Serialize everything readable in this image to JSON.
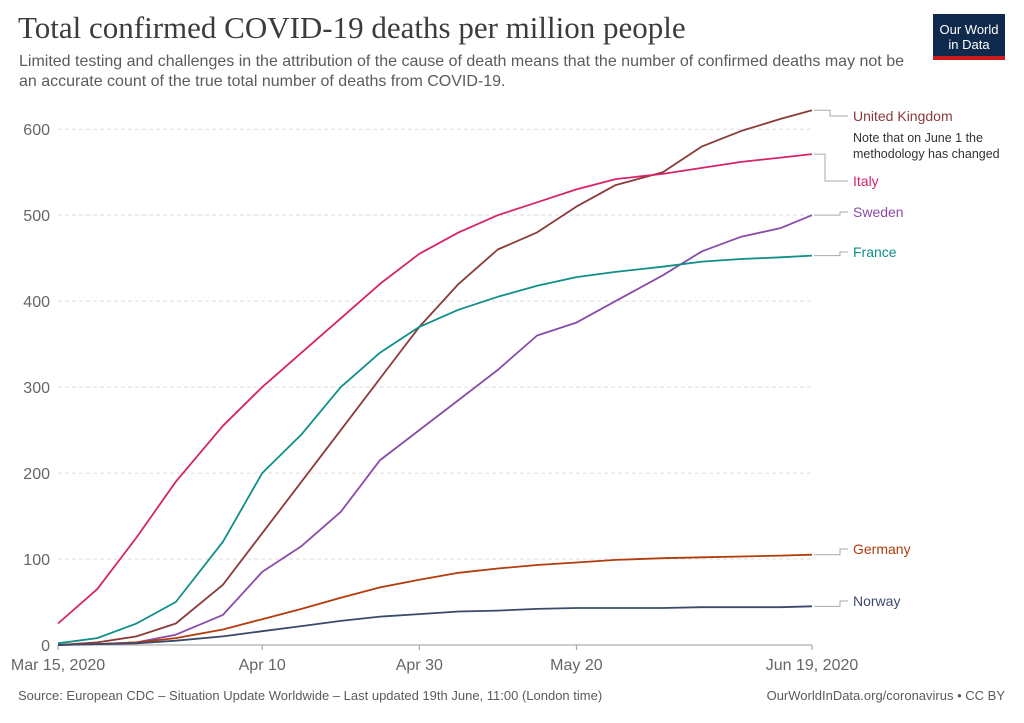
{
  "header": {
    "title": "Total confirmed COVID-19 deaths per million people",
    "subtitle": "Limited testing and challenges in the attribution of the cause of death means that the number of confirmed deaths may not be an accurate count of the true total number of deaths from COVID-19.",
    "logo_line1": "Our World",
    "logo_line2": "in Data"
  },
  "footer": {
    "source": "Source: European CDC – Situation Update Worldwide – Last updated 19th June, 11:00 (London time)",
    "credit": "OurWorldInData.org/coronavirus • CC BY"
  },
  "colors": {
    "United Kingdom": "#8b3a3a",
    "Italy": "#d6246b",
    "Sweden": "#8a4ca8",
    "France": "#0f8f88",
    "Germany": "#b23c0c",
    "Norway": "#3b4a6b",
    "grid": "#dddddd"
  },
  "chart_data": {
    "type": "line",
    "title": "Total confirmed COVID-19 deaths per million people",
    "xlabel": "",
    "ylabel": "",
    "ylim": [
      0,
      620
    ],
    "y_ticks": [
      0,
      100,
      200,
      300,
      400,
      500,
      600
    ],
    "x_ticks": [
      "Mar 15, 2020",
      "Apr 10",
      "Apr 30",
      "May 20",
      "Jun 19, 2020"
    ],
    "x_tick_dates": [
      "2020-03-15",
      "2020-04-10",
      "2020-04-30",
      "2020-05-20",
      "2020-06-19"
    ],
    "x_range": [
      "2020-03-15",
      "2020-06-19"
    ],
    "grid": true,
    "legend": "right-inline",
    "annotation": "Note that on June 1 the methodology has changed",
    "series": [
      {
        "name": "United Kingdom",
        "points": [
          [
            "2020-03-15",
            0
          ],
          [
            "2020-03-20",
            3
          ],
          [
            "2020-03-25",
            10
          ],
          [
            "2020-03-30",
            25
          ],
          [
            "2020-04-05",
            70
          ],
          [
            "2020-04-10",
            130
          ],
          [
            "2020-04-15",
            190
          ],
          [
            "2020-04-20",
            250
          ],
          [
            "2020-04-25",
            310
          ],
          [
            "2020-04-30",
            370
          ],
          [
            "2020-05-05",
            420
          ],
          [
            "2020-05-10",
            460
          ],
          [
            "2020-05-15",
            480
          ],
          [
            "2020-05-20",
            510
          ],
          [
            "2020-05-25",
            535
          ],
          [
            "2020-05-31",
            550
          ],
          [
            "2020-06-05",
            580
          ],
          [
            "2020-06-10",
            598
          ],
          [
            "2020-06-15",
            612
          ],
          [
            "2020-06-19",
            622
          ]
        ]
      },
      {
        "name": "Italy",
        "points": [
          [
            "2020-03-15",
            25
          ],
          [
            "2020-03-20",
            65
          ],
          [
            "2020-03-25",
            125
          ],
          [
            "2020-03-30",
            190
          ],
          [
            "2020-04-05",
            255
          ],
          [
            "2020-04-10",
            300
          ],
          [
            "2020-04-15",
            340
          ],
          [
            "2020-04-20",
            380
          ],
          [
            "2020-04-25",
            420
          ],
          [
            "2020-04-30",
            455
          ],
          [
            "2020-05-05",
            480
          ],
          [
            "2020-05-10",
            500
          ],
          [
            "2020-05-15",
            515
          ],
          [
            "2020-05-20",
            530
          ],
          [
            "2020-05-25",
            542
          ],
          [
            "2020-05-31",
            548
          ],
          [
            "2020-06-05",
            555
          ],
          [
            "2020-06-10",
            562
          ],
          [
            "2020-06-15",
            567
          ],
          [
            "2020-06-19",
            571
          ]
        ]
      },
      {
        "name": "Sweden",
        "points": [
          [
            "2020-03-15",
            0
          ],
          [
            "2020-03-20",
            1
          ],
          [
            "2020-03-25",
            3
          ],
          [
            "2020-03-30",
            12
          ],
          [
            "2020-04-05",
            35
          ],
          [
            "2020-04-10",
            85
          ],
          [
            "2020-04-15",
            115
          ],
          [
            "2020-04-20",
            155
          ],
          [
            "2020-04-25",
            215
          ],
          [
            "2020-04-30",
            250
          ],
          [
            "2020-05-05",
            285
          ],
          [
            "2020-05-10",
            320
          ],
          [
            "2020-05-15",
            360
          ],
          [
            "2020-05-20",
            375
          ],
          [
            "2020-05-25",
            400
          ],
          [
            "2020-05-31",
            430
          ],
          [
            "2020-06-05",
            458
          ],
          [
            "2020-06-10",
            475
          ],
          [
            "2020-06-15",
            485
          ],
          [
            "2020-06-19",
            500
          ]
        ]
      },
      {
        "name": "France",
        "points": [
          [
            "2020-03-15",
            2
          ],
          [
            "2020-03-20",
            8
          ],
          [
            "2020-03-25",
            25
          ],
          [
            "2020-03-30",
            50
          ],
          [
            "2020-04-05",
            120
          ],
          [
            "2020-04-10",
            200
          ],
          [
            "2020-04-15",
            245
          ],
          [
            "2020-04-20",
            300
          ],
          [
            "2020-04-25",
            340
          ],
          [
            "2020-04-30",
            370
          ],
          [
            "2020-05-05",
            390
          ],
          [
            "2020-05-10",
            405
          ],
          [
            "2020-05-15",
            418
          ],
          [
            "2020-05-20",
            428
          ],
          [
            "2020-05-25",
            434
          ],
          [
            "2020-05-31",
            440
          ],
          [
            "2020-06-05",
            446
          ],
          [
            "2020-06-10",
            449
          ],
          [
            "2020-06-15",
            451
          ],
          [
            "2020-06-19",
            453
          ]
        ]
      },
      {
        "name": "Germany",
        "points": [
          [
            "2020-03-15",
            0
          ],
          [
            "2020-03-20",
            1
          ],
          [
            "2020-03-25",
            3
          ],
          [
            "2020-03-30",
            8
          ],
          [
            "2020-04-05",
            18
          ],
          [
            "2020-04-10",
            30
          ],
          [
            "2020-04-15",
            42
          ],
          [
            "2020-04-20",
            55
          ],
          [
            "2020-04-25",
            67
          ],
          [
            "2020-04-30",
            76
          ],
          [
            "2020-05-05",
            84
          ],
          [
            "2020-05-10",
            89
          ],
          [
            "2020-05-15",
            93
          ],
          [
            "2020-05-20",
            96
          ],
          [
            "2020-05-25",
            99
          ],
          [
            "2020-05-31",
            101
          ],
          [
            "2020-06-05",
            102
          ],
          [
            "2020-06-10",
            103
          ],
          [
            "2020-06-15",
            104
          ],
          [
            "2020-06-19",
            105
          ]
        ]
      },
      {
        "name": "Norway",
        "points": [
          [
            "2020-03-15",
            0
          ],
          [
            "2020-03-20",
            1
          ],
          [
            "2020-03-25",
            2
          ],
          [
            "2020-03-30",
            5
          ],
          [
            "2020-04-05",
            10
          ],
          [
            "2020-04-10",
            16
          ],
          [
            "2020-04-15",
            22
          ],
          [
            "2020-04-20",
            28
          ],
          [
            "2020-04-25",
            33
          ],
          [
            "2020-04-30",
            36
          ],
          [
            "2020-05-05",
            39
          ],
          [
            "2020-05-10",
            40
          ],
          [
            "2020-05-15",
            42
          ],
          [
            "2020-05-20",
            43
          ],
          [
            "2020-05-25",
            43
          ],
          [
            "2020-05-31",
            43
          ],
          [
            "2020-06-05",
            44
          ],
          [
            "2020-06-10",
            44
          ],
          [
            "2020-06-15",
            44
          ],
          [
            "2020-06-19",
            45
          ]
        ]
      }
    ],
    "labels": [
      {
        "name": "United Kingdom",
        "text": "United Kingdom"
      },
      {
        "name": "Italy",
        "text": "Italy"
      },
      {
        "name": "Sweden",
        "text": "Sweden"
      },
      {
        "name": "France",
        "text": "France"
      },
      {
        "name": "Germany",
        "text": "Germany"
      },
      {
        "name": "Norway",
        "text": "Norway"
      }
    ]
  }
}
